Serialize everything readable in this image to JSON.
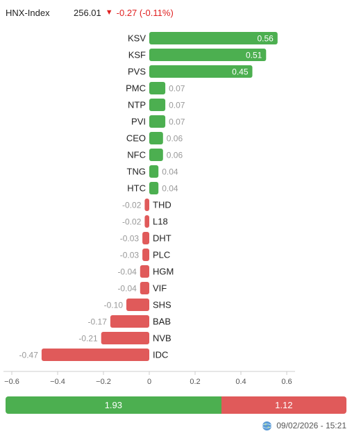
{
  "header": {
    "index_name": "HNX-Index",
    "index_value": "256.01",
    "index_change": "-0.27 (-0.11%)",
    "direction_icon": "triangle-down-icon"
  },
  "colors": {
    "up": "#4caf50",
    "down": "#e05a5a",
    "change_text": "#e02020"
  },
  "chart_data": {
    "type": "bar",
    "orientation": "horizontal",
    "categories": [
      "KSV",
      "KSF",
      "PVS",
      "PMC",
      "NTP",
      "PVI",
      "CEO",
      "NFC",
      "TNG",
      "HTC",
      "THD",
      "L18",
      "DHT",
      "PLC",
      "HGM",
      "VIF",
      "SHS",
      "BAB",
      "NVB",
      "IDC"
    ],
    "values": [
      0.56,
      0.51,
      0.45,
      0.07,
      0.07,
      0.07,
      0.06,
      0.06,
      0.04,
      0.04,
      -0.02,
      -0.02,
      -0.03,
      -0.03,
      -0.04,
      -0.04,
      -0.1,
      -0.17,
      -0.21,
      -0.47
    ],
    "value_labels": [
      "0.56",
      "0.51",
      "0.45",
      "0.07",
      "0.07",
      "0.07",
      "0.06",
      "0.06",
      "0.04",
      "0.04",
      "-0.02",
      "-0.02",
      "-0.03",
      "-0.03",
      "-0.04",
      "-0.04",
      "-0.10",
      "-0.17",
      "-0.21",
      "-0.47"
    ],
    "xlim": [
      -0.6,
      0.6
    ],
    "xticks": [
      -0.6,
      -0.4,
      -0.2,
      0,
      0.2,
      0.4,
      0.6
    ],
    "xtick_labels": [
      "−0.6",
      "−0.4",
      "−0.2",
      "0",
      "0.2",
      "0.4",
      "0.6"
    ],
    "grid": false,
    "legend": "none"
  },
  "summary": {
    "up_total": 1.93,
    "down_total": 1.12,
    "up_label": "1.93",
    "down_label": "1.12"
  },
  "footer": {
    "timestamp": "09/02/2026 - 15:21",
    "icon": "globe-icon"
  }
}
